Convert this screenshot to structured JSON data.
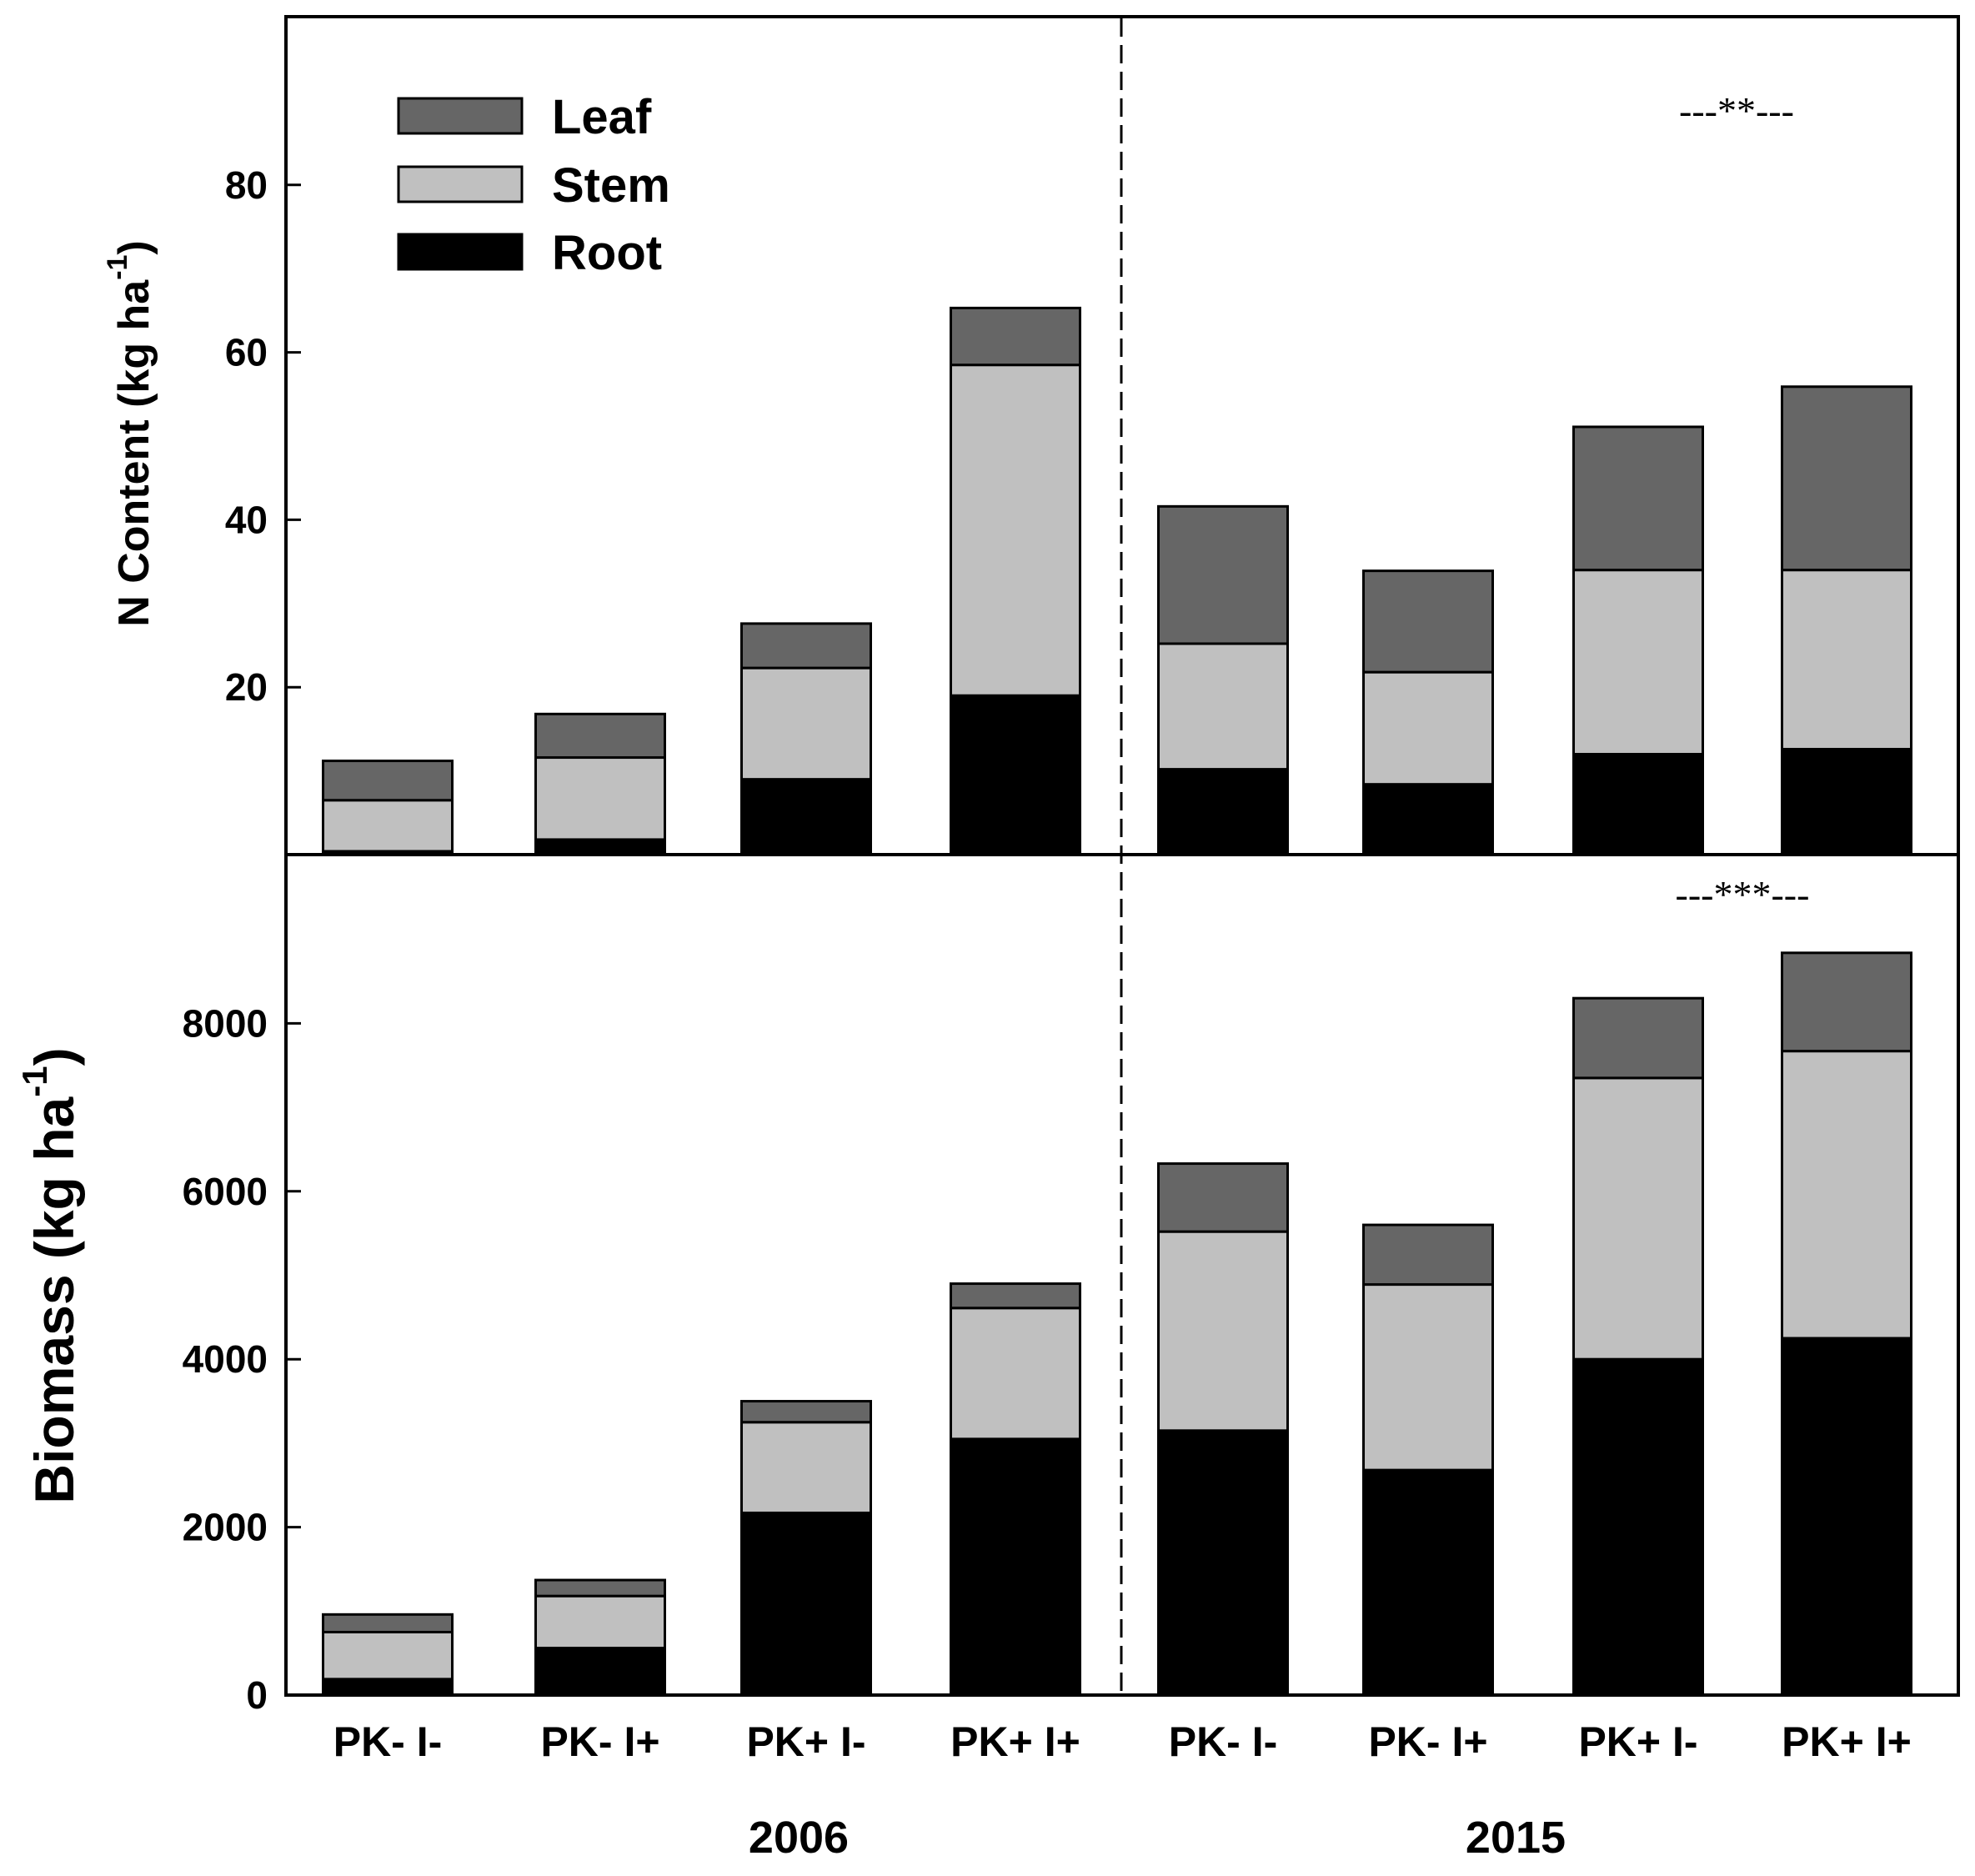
{
  "chart_data": [
    {
      "type": "bar",
      "stacked": true,
      "panel": "top",
      "ylabel": "N Content (kg ha",
      "ylabel_sup": "-1",
      "ylabel_close": ")",
      "ylim": [
        0,
        100
      ],
      "yticks": [
        20,
        40,
        60,
        80
      ],
      "groups": [
        "2006",
        "2015"
      ],
      "categories": [
        "PK- I-",
        "PK- I+",
        "PK+ I-",
        "PK+ I+",
        "PK- I-",
        "PK- I+",
        "PK+ I-",
        "PK+ I+"
      ],
      "series": [
        {
          "name": "Root",
          "color": "#000000",
          "values": [
            0.4,
            1.8,
            9,
            19,
            10.2,
            8.4,
            12,
            12.6
          ]
        },
        {
          "name": "Stem",
          "color": "#c0c0c0",
          "values": [
            6.1,
            9.8,
            13.3,
            39.5,
            15,
            13.4,
            22,
            21.4
          ]
        },
        {
          "name": "Leaf",
          "color": "#666666",
          "values": [
            4.7,
            5.2,
            5.3,
            6.8,
            16.4,
            12.1,
            17.1,
            21.9
          ]
        }
      ],
      "annotation": "---**---"
    },
    {
      "type": "bar",
      "stacked": true,
      "panel": "bottom",
      "ylabel": "Biomass (kg ha",
      "ylabel_sup": "-1",
      "ylabel_close": ")",
      "ylim": [
        0,
        10000
      ],
      "yticks": [
        0,
        2000,
        4000,
        6000,
        8000
      ],
      "groups": [
        "2006",
        "2015"
      ],
      "categories": [
        "PK- I-",
        "PK- I+",
        "PK+ I-",
        "PK+ I+",
        "PK- I-",
        "PK- I+",
        "PK+ I-",
        "PK+ I+"
      ],
      "series": [
        {
          "name": "Root",
          "color": "#000000",
          "values": [
            190,
            560,
            2170,
            3050,
            3150,
            2680,
            4000,
            4250
          ]
        },
        {
          "name": "Stem",
          "color": "#c0c0c0",
          "values": [
            560,
            620,
            1080,
            1560,
            2370,
            2210,
            3350,
            3420
          ]
        },
        {
          "name": "Leaf",
          "color": "#666666",
          "values": [
            210,
            190,
            250,
            290,
            810,
            710,
            950,
            1170
          ]
        }
      ],
      "annotation": "---***---"
    }
  ],
  "legend": {
    "placement": "top-left",
    "items": [
      {
        "name": "Leaf",
        "color": "#666666"
      },
      {
        "name": "Stem",
        "color": "#c0c0c0"
      },
      {
        "name": "Root",
        "color": "#000000"
      }
    ]
  },
  "x_labels": [
    "PK- I-",
    "PK- I+",
    "PK+ I-",
    "PK+ I+",
    "PK- I-",
    "PK- I+",
    "PK+ I-",
    "PK+ I+"
  ],
  "year_labels": [
    "2006",
    "2015"
  ],
  "divider_color": "#000000"
}
